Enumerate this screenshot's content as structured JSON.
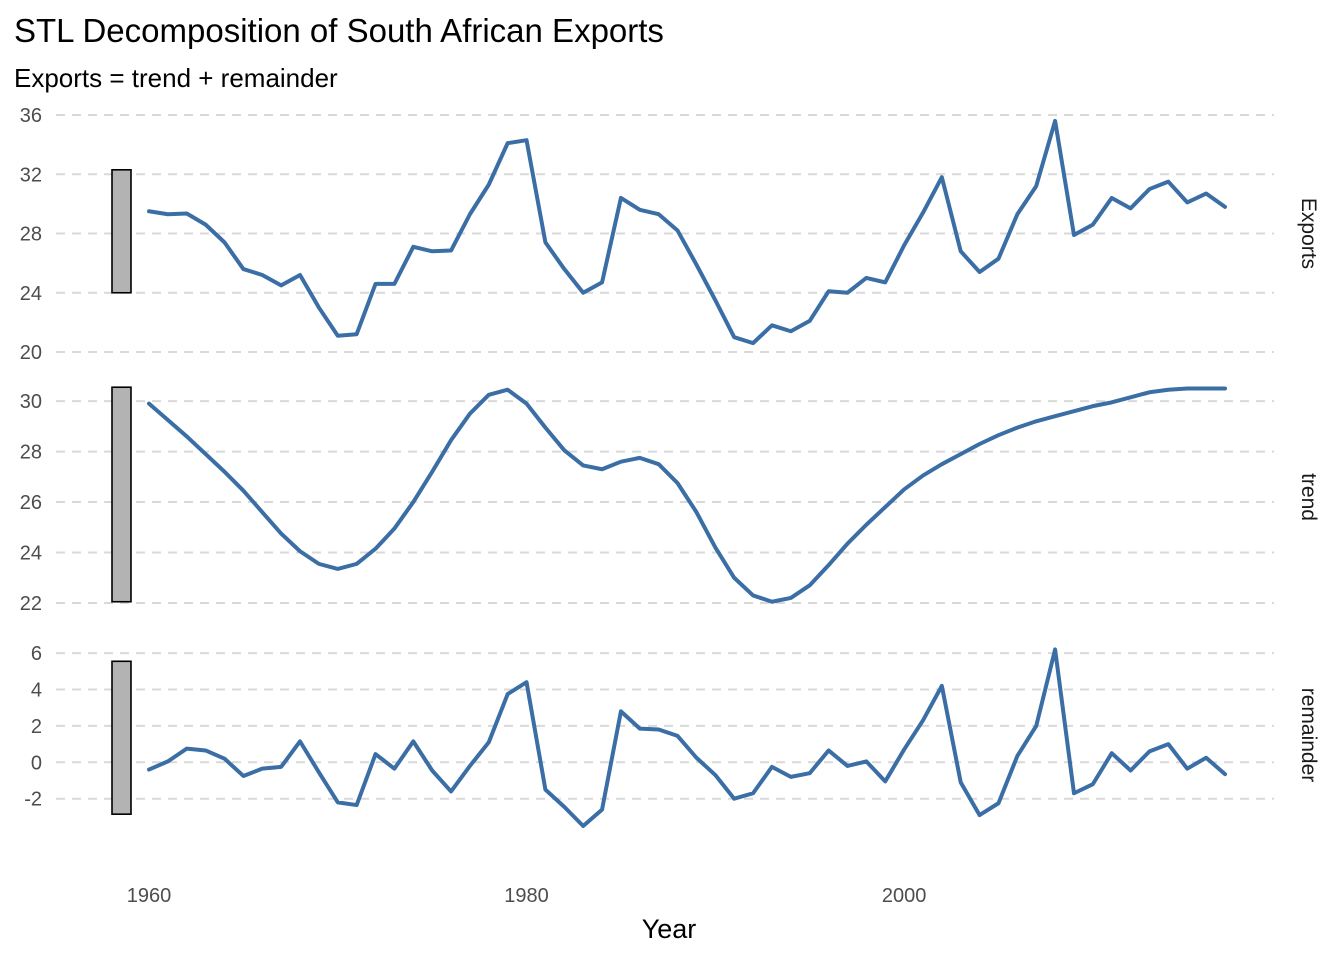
{
  "chart_data": {
    "type": "line",
    "title": "STL Decomposition of South African Exports",
    "subtitle": "Exports = trend + remainder",
    "xlabel": "Year",
    "x_ticks": [
      1960,
      1980,
      2000
    ],
    "xlim": [
      1960,
      2017
    ],
    "line_color": "#3a6ea5",
    "range_bar_color": "#b3b3b3",
    "grid": "horizontal-dashed",
    "years": [
      1960,
      1961,
      1962,
      1963,
      1964,
      1965,
      1966,
      1967,
      1968,
      1969,
      1970,
      1971,
      1972,
      1973,
      1974,
      1975,
      1976,
      1977,
      1978,
      1979,
      1980,
      1981,
      1982,
      1983,
      1984,
      1985,
      1986,
      1987,
      1988,
      1989,
      1990,
      1991,
      1992,
      1993,
      1994,
      1995,
      1996,
      1997,
      1998,
      1999,
      2000,
      2001,
      2002,
      2003,
      2004,
      2005,
      2006,
      2007,
      2008,
      2009,
      2010,
      2011,
      2012,
      2013,
      2014,
      2015,
      2016,
      2017
    ],
    "panels": [
      {
        "name": "Exports",
        "ylim": [
          20,
          36
        ],
        "y_ticks": [
          20,
          24,
          28,
          32,
          36
        ],
        "range_bar": [
          24,
          32.3
        ],
        "values": [
          29.5,
          29.3,
          29.35,
          28.6,
          27.4,
          25.6,
          25.2,
          24.5,
          25.2,
          23,
          21.1,
          21.2,
          24.6,
          24.6,
          27.1,
          26.8,
          26.85,
          29.3,
          31.3,
          34.1,
          34.3,
          27.4,
          25.6,
          24,
          24.7,
          30.4,
          29.6,
          29.3,
          28.2,
          25.9,
          23.5,
          21,
          20.6,
          21.8,
          21.4,
          22.1,
          24.1,
          24,
          25,
          24.7,
          27.2,
          29.4,
          31.8,
          26.8,
          25.4,
          26.3,
          29.3,
          31.2,
          35.6,
          27.9,
          28.6,
          30.4,
          29.7,
          31,
          31.5,
          30.1,
          30.7,
          29.8
        ]
      },
      {
        "name": "trend",
        "ylim": [
          22,
          30.4
        ],
        "y_ticks": [
          22,
          24,
          26,
          28,
          30
        ],
        "range_bar": [
          22.05,
          30.55
        ],
        "values": [
          29.9,
          29.25,
          28.6,
          27.9,
          27.2,
          26.45,
          25.6,
          24.75,
          24.05,
          23.55,
          23.35,
          23.55,
          24.15,
          24.95,
          26,
          27.2,
          28.45,
          29.5,
          30.25,
          30.45,
          29.9,
          28.95,
          28.05,
          27.45,
          27.3,
          27.6,
          27.75,
          27.5,
          26.75,
          25.6,
          24.2,
          23,
          22.3,
          22.05,
          22.2,
          22.7,
          23.5,
          24.35,
          25.1,
          25.8,
          26.5,
          27.05,
          27.5,
          27.9,
          28.3,
          28.65,
          28.95,
          29.2,
          29.4,
          29.6,
          29.8,
          29.95,
          30.15,
          30.35,
          30.45,
          30.5,
          30.5,
          30.5
        ]
      },
      {
        "name": "remainder",
        "ylim": [
          -3.5,
          6.5
        ],
        "y_ticks": [
          -2,
          0,
          2,
          4,
          6
        ],
        "range_bar": [
          -2.85,
          5.55
        ],
        "values": [
          -0.4,
          0.05,
          0.75,
          0.65,
          0.2,
          -0.75,
          -0.35,
          -0.25,
          1.15,
          -0.55,
          -2.2,
          -2.35,
          0.45,
          -0.35,
          1.15,
          -0.45,
          -1.6,
          -0.2,
          1.1,
          3.75,
          4.4,
          -1.5,
          -2.45,
          -3.5,
          -2.6,
          2.8,
          1.85,
          1.8,
          1.45,
          0.25,
          -0.7,
          -2,
          -1.7,
          -0.25,
          -0.8,
          -0.6,
          0.65,
          -0.2,
          0.05,
          -1.05,
          0.7,
          2.3,
          4.2,
          -1.1,
          -2.9,
          -2.25,
          0.35,
          2,
          6.2,
          -1.7,
          -1.2,
          0.5,
          -0.45,
          0.6,
          1,
          -0.35,
          0.25,
          -0.65
        ]
      }
    ]
  }
}
